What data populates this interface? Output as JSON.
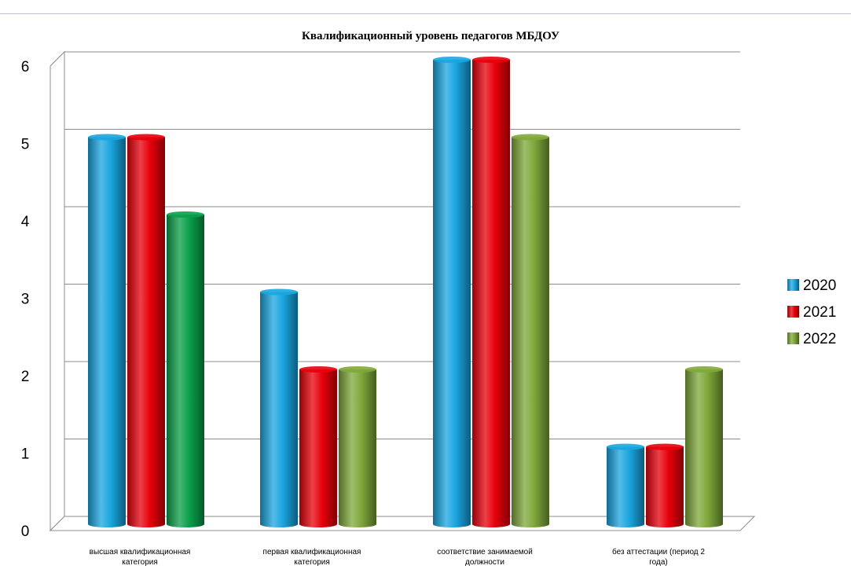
{
  "chart_data": {
    "type": "bar",
    "title": "Квалификационный уровень педагогов МБДОУ",
    "categories": [
      [
        "высшая квалификационная",
        "категория"
      ],
      [
        "первая квалификационная",
        "категория"
      ],
      [
        "соответствие занимаемой",
        "должности"
      ],
      [
        "без аттестации (период 2",
        "года)"
      ]
    ],
    "series": [
      {
        "name": "2020",
        "values": [
          5,
          3,
          6,
          1
        ]
      },
      {
        "name": "2021",
        "values": [
          5,
          2,
          6,
          1
        ]
      },
      {
        "name": "2022",
        "values": [
          4,
          2,
          5,
          2
        ]
      }
    ],
    "ylim": [
      0,
      6
    ],
    "yticks": [
      "0",
      "1",
      "2",
      "3",
      "4",
      "5",
      "6"
    ],
    "grid": true,
    "legend_position": "right",
    "colors": {
      "2020": "#1aa6e0",
      "2021": "#e8000b",
      "2022": "#7fa83a",
      "2022_first_bar": "#0aa04a"
    }
  }
}
